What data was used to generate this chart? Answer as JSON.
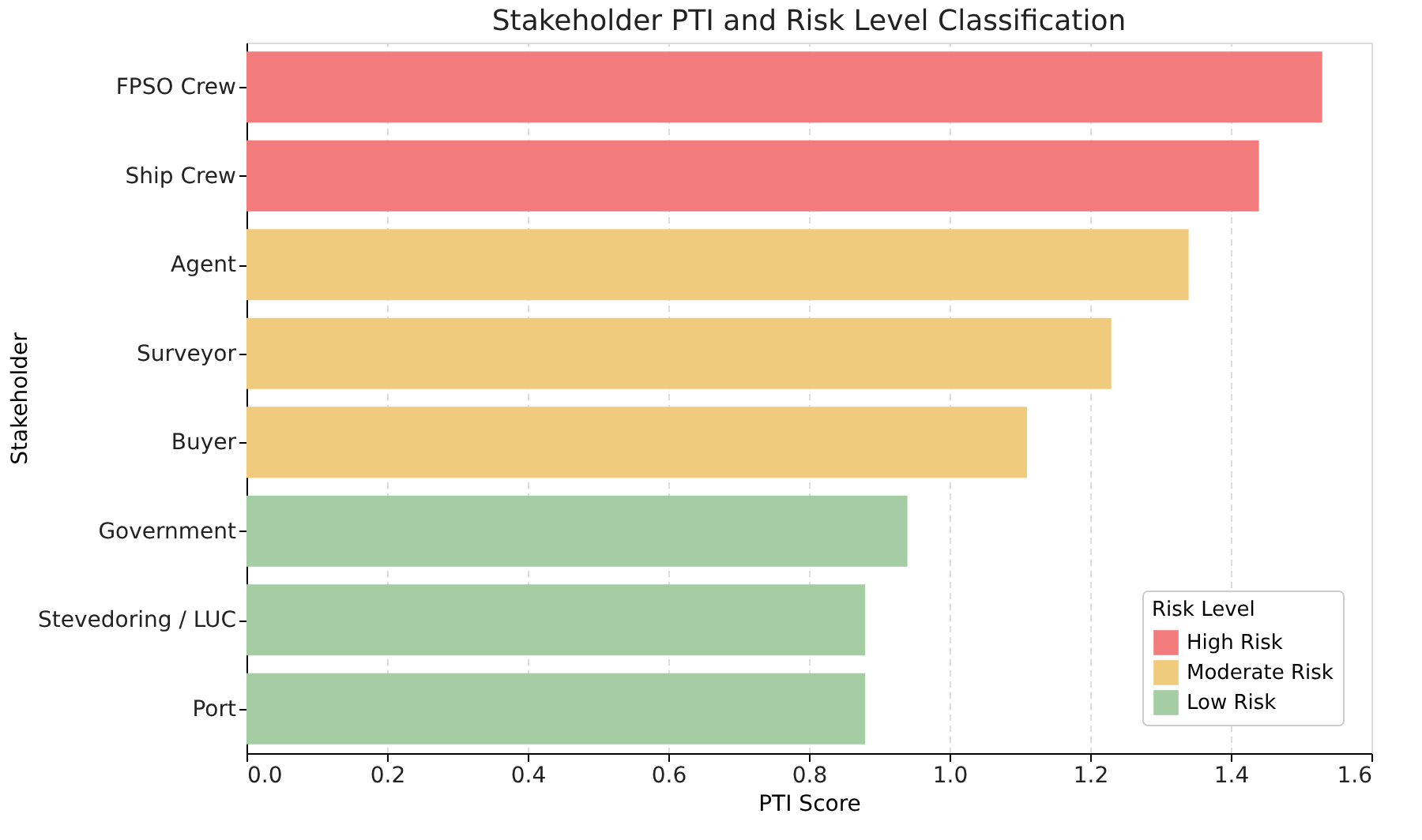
{
  "chart_data": {
    "type": "bar",
    "orientation": "horizontal",
    "title": "Stakeholder PTI and Risk Level Classification",
    "xlabel": "PTI Score",
    "ylabel": "Stakeholder",
    "legend_title": "Risk Level",
    "categories": [
      "FPSO Crew",
      "Ship Crew",
      "Agent",
      "Surveyor",
      "Buyer",
      "Government",
      "Stevedoring / LUC",
      "Port"
    ],
    "series": [
      {
        "name": "High Risk",
        "color": "#f27c7c",
        "values": [
          1.53,
          1.44,
          null,
          null,
          null,
          null,
          null,
          null
        ]
      },
      {
        "name": "Moderate Risk",
        "color": "#f0cb7d",
        "values": [
          null,
          null,
          1.34,
          1.23,
          1.11,
          null,
          null,
          null
        ]
      },
      {
        "name": "Low Risk",
        "color": "#a4cda4",
        "values": [
          null,
          null,
          null,
          null,
          null,
          0.94,
          0.88,
          0.88
        ]
      }
    ],
    "xlim": [
      0,
      1.6
    ],
    "xticks": [
      {
        "value": 0,
        "label": "0.0"
      },
      0.2,
      0.4,
      0.6,
      0.8,
      {
        "value": 1,
        "label": "1.0"
      },
      1.2,
      1.4,
      1.6
    ],
    "grid": "x",
    "legend": "bottom right"
  }
}
